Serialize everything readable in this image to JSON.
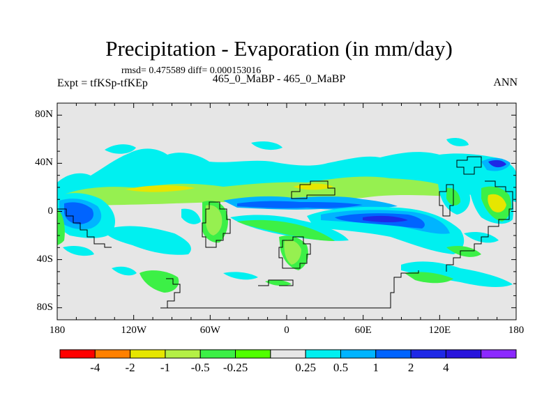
{
  "title": "Precipitation - Evaporation (in mm/day)",
  "stats": "rmsd= 0.475589 diff= 0.000153016",
  "expt": "Expt = tfKSp-tfKEp",
  "case": "465_0_MaBP - 465_0_MaBP",
  "season": "ANN",
  "axes": {
    "lat_labels": [
      {
        "text": "80N",
        "value": 80
      },
      {
        "text": "40N",
        "value": 40
      },
      {
        "text": "0",
        "value": 0
      },
      {
        "text": "40S",
        "value": -40
      },
      {
        "text": "80S",
        "value": -80
      }
    ],
    "lon_labels": [
      {
        "text": "180",
        "value": -180
      },
      {
        "text": "120W",
        "value": -120
      },
      {
        "text": "60W",
        "value": -60
      },
      {
        "text": "0",
        "value": 0
      },
      {
        "text": "60E",
        "value": 60
      },
      {
        "text": "120E",
        "value": 120
      },
      {
        "text": "180",
        "value": 180
      }
    ],
    "lon_range": [
      -180,
      180
    ],
    "lat_range": [
      -90,
      90
    ]
  },
  "colorbar": {
    "colors": [
      "#ff0000",
      "#ff8000",
      "#e6e600",
      "#b4f046",
      "#3cf046",
      "#50ff00",
      "#e6e6e6",
      "#00f0f0",
      "#00b4ff",
      "#0064ff",
      "#1e28e6",
      "#2814dc",
      "#8c28ff"
    ],
    "labels": [
      "-4",
      "-2",
      "-1",
      "-0.5",
      "-0.25",
      "0.25",
      "0.5",
      "1",
      "2",
      "4"
    ]
  },
  "palette": {
    "background": "#e6e6e6",
    "cyan": "#00f0f0",
    "lightblue": "#00b4ff",
    "blue": "#0064ff",
    "darkblue": "#1e28e6",
    "green": "#3cf046",
    "lightgreen": "#96f050",
    "yellow": "#e6e600"
  }
}
